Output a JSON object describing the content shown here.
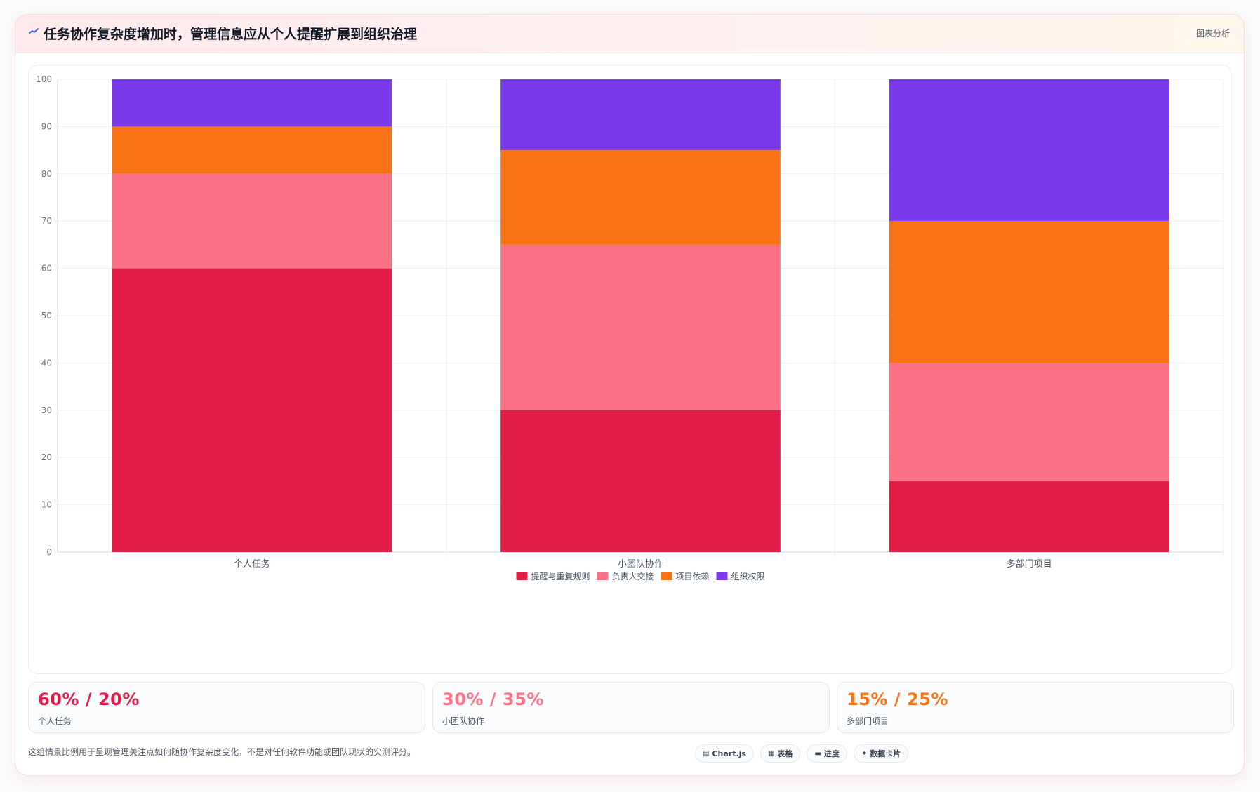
{
  "header": {
    "icon": "chart-line-icon",
    "title": "任务协作复杂度增加时，管理信息应从个人提醒扩展到组织治理",
    "tag": "图表分析"
  },
  "chart_data": {
    "type": "bar",
    "stacked": true,
    "categories": [
      "个人任务",
      "小团队协作",
      "多部门项目"
    ],
    "series": [
      {
        "name": "提醒与重复规则",
        "color": "#e11d48",
        "values": [
          60,
          30,
          15
        ]
      },
      {
        "name": "负责人交接",
        "color": "#fb7185",
        "values": [
          20,
          35,
          25
        ]
      },
      {
        "name": "项目依赖",
        "color": "#f97316",
        "values": [
          10,
          20,
          30
        ]
      },
      {
        "name": "组织权限",
        "color": "#7c3aed",
        "values": [
          10,
          15,
          30
        ]
      }
    ],
    "ylim": [
      0,
      100
    ],
    "yticks": [
      0,
      10,
      20,
      30,
      40,
      50,
      60,
      70,
      80,
      90,
      100
    ],
    "grid": true,
    "legend": "bottom-center",
    "title": "",
    "xlabel": "",
    "ylabel": ""
  },
  "stats": [
    {
      "value": "60% / 20%",
      "label": "个人任务",
      "color": "#e11d48"
    },
    {
      "value": "30% / 35%",
      "label": "小团队协作",
      "color": "#fb7185"
    },
    {
      "value": "15% / 25%",
      "label": "多部门项目",
      "color": "#f97316"
    }
  ],
  "footnote": "这组情景比例用于呈现管理关注点如何随协作复杂度变化，不是对任何软件功能或团队现状的实测评分。",
  "chips": [
    {
      "icon": "chart-icon",
      "glyph": "▤",
      "label": "Chart.js"
    },
    {
      "icon": "table-icon",
      "glyph": "▦",
      "label": "表格"
    },
    {
      "icon": "progress-icon",
      "glyph": "▬",
      "label": "进度"
    },
    {
      "icon": "sparkle-icon",
      "glyph": "✦",
      "label": "数据卡片"
    }
  ]
}
